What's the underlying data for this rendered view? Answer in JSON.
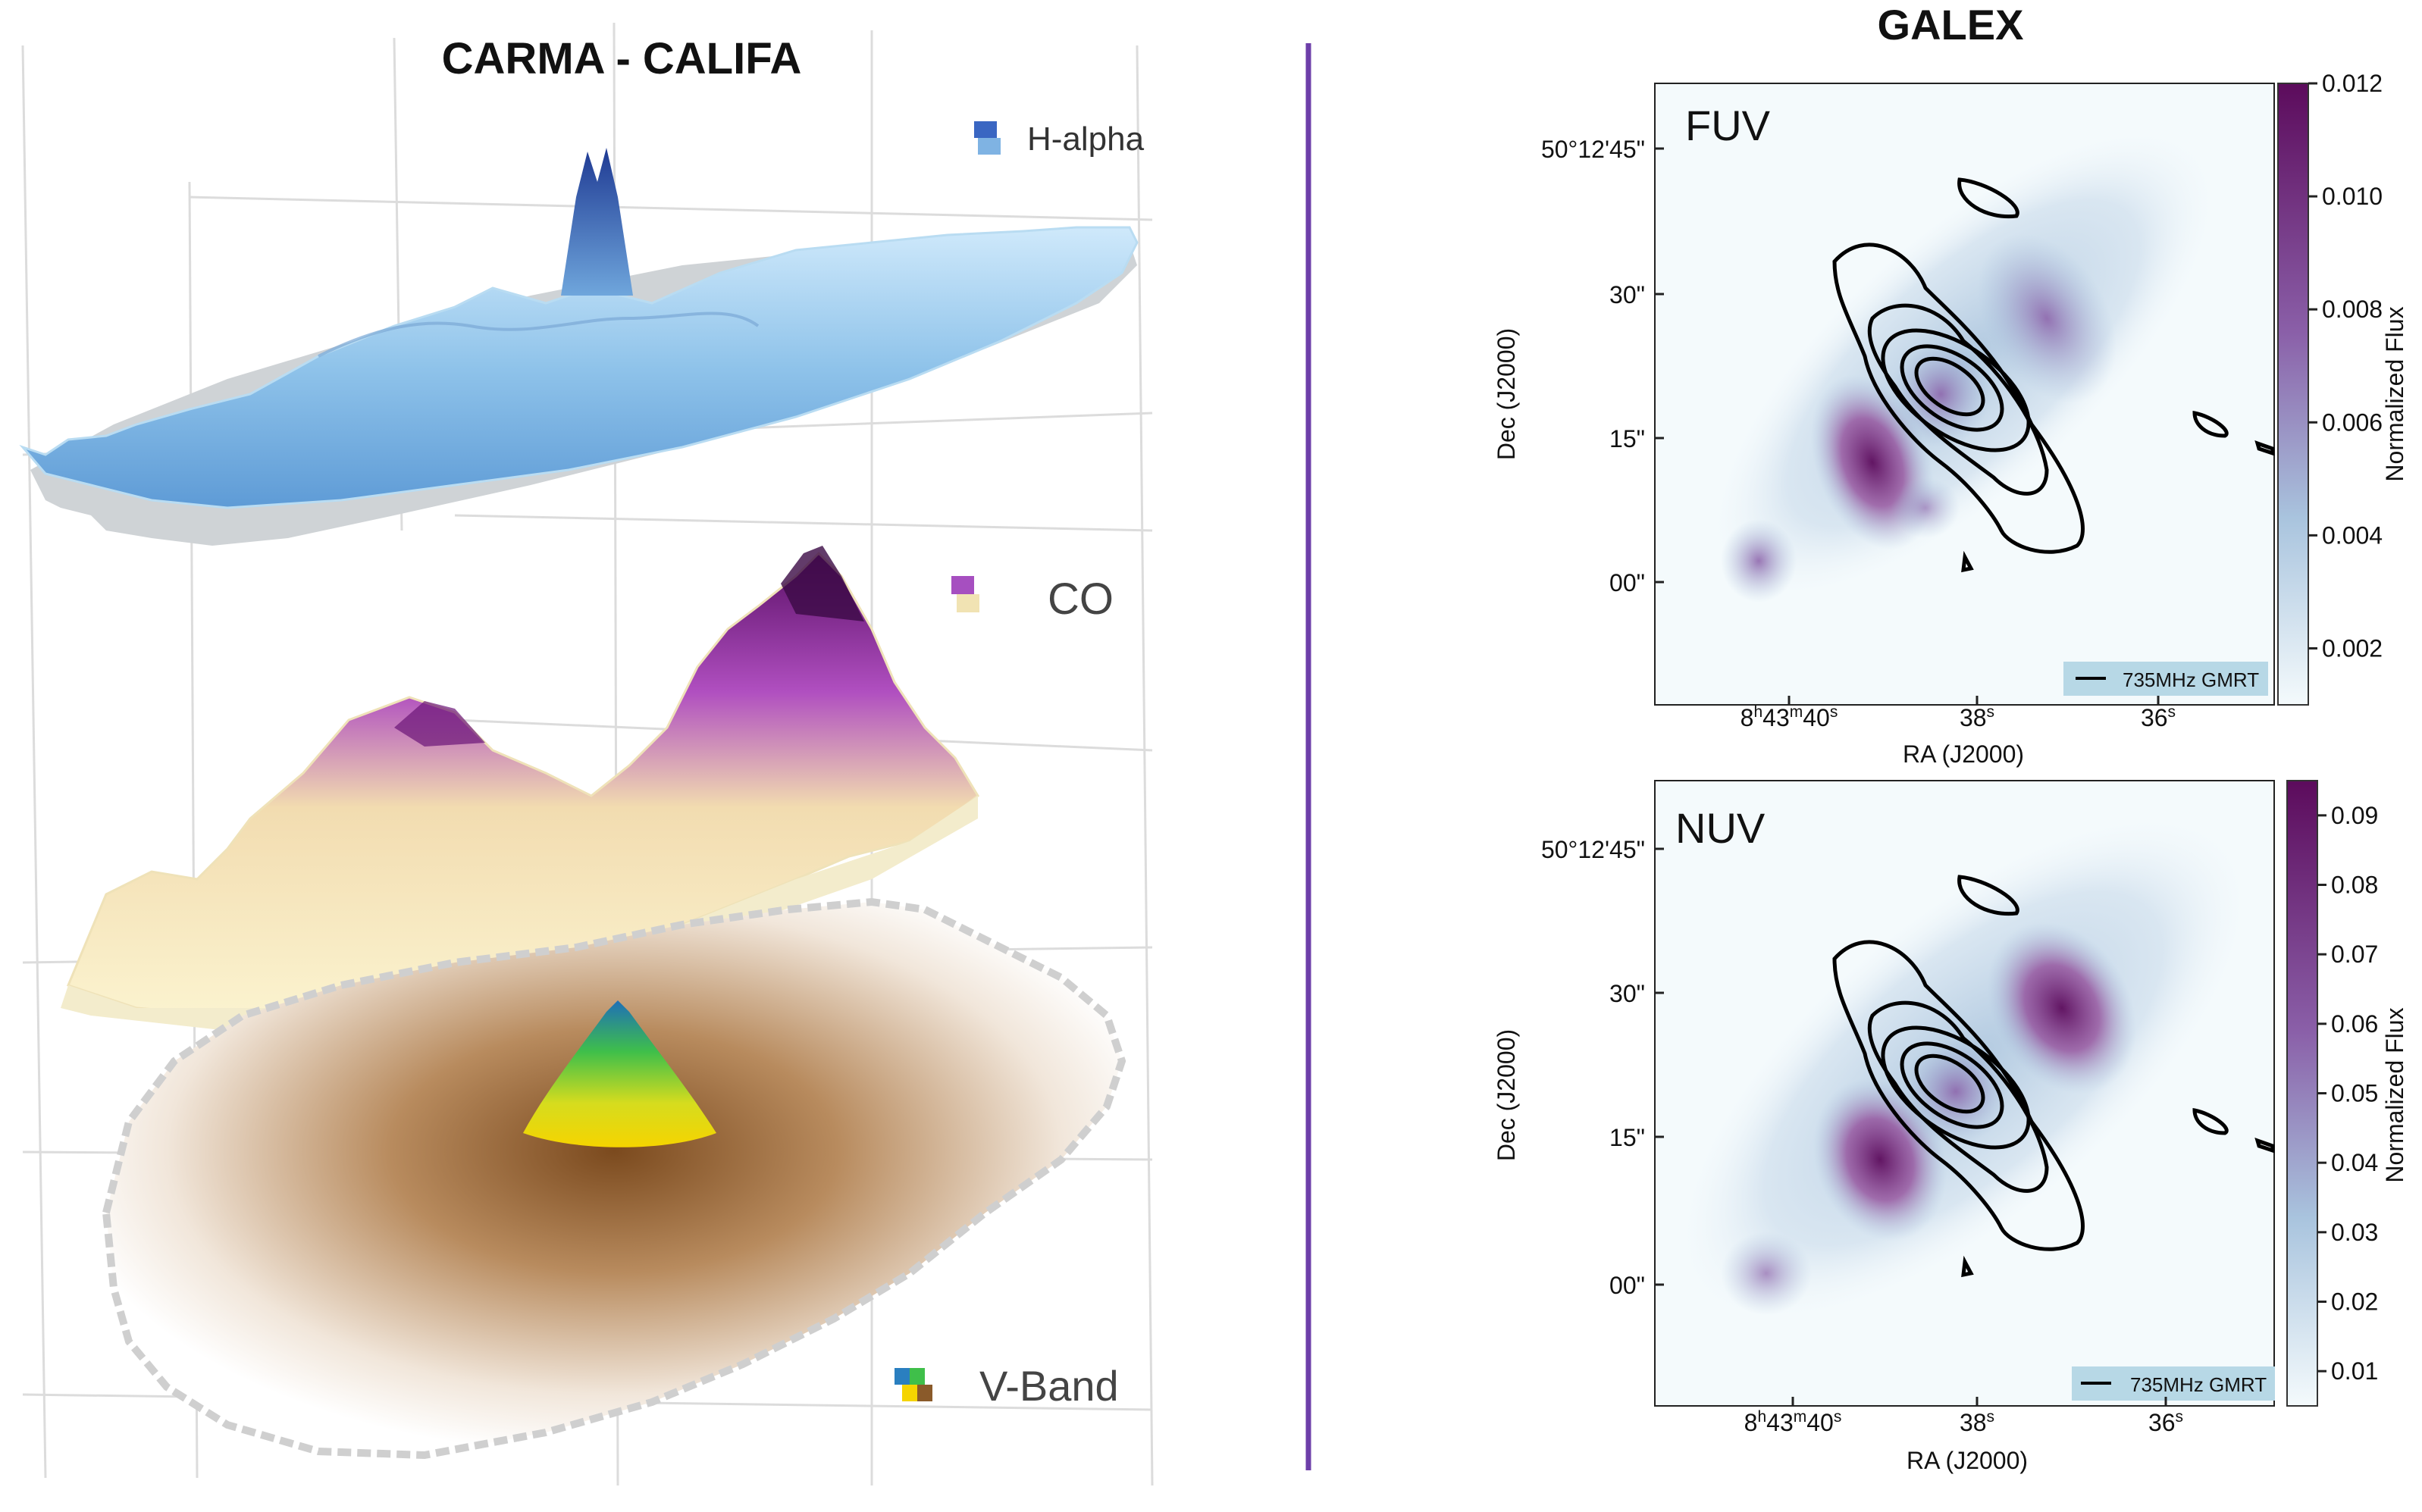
{
  "left_panel": {
    "title": "CARMA - CALIFA",
    "layers": [
      {
        "label": "H-alpha",
        "colors": [
          "#1f3a93",
          "#5e9bd6",
          "#cfe9fb"
        ]
      },
      {
        "label": "CO",
        "colors": [
          "#5a0f66",
          "#b04fc0",
          "#f6eab8"
        ]
      },
      {
        "label": "V-Band",
        "colors": [
          "#1e6fb8",
          "#3fbf4a",
          "#f5d400",
          "#7b4a1e"
        ]
      }
    ]
  },
  "divider_color": "#6d3fa9",
  "chart_data": [
    {
      "type": "heatmap",
      "group_title": "GALEX",
      "panel_label": "FUV",
      "xlabel": "RA (J2000)",
      "ylabel": "Dec (J2000)",
      "xticks": [
        {
          "base": "8",
          "h": "h",
          "min": "43",
          "m": "m",
          "sec": "40",
          "s": "s"
        },
        {
          "base": "38",
          "s": "s"
        },
        {
          "base": "36",
          "s": "s"
        }
      ],
      "yticks": [
        "50°12'45\"",
        "30\"",
        "15\"",
        "00\""
      ],
      "colorbar": {
        "label": "Normalized Flux",
        "ticks": [
          "0.012",
          "0.010",
          "0.008",
          "0.006",
          "0.004",
          "0.002"
        ],
        "range": [
          0.001,
          0.012
        ],
        "colors": [
          "#f4fafc",
          "#9fbcd9",
          "#8a5fa8",
          "#5c0b5c"
        ]
      },
      "legend": {
        "label": "735MHz GMRT",
        "position": "bottom-right"
      },
      "contour_series": "735MHz GMRT"
    },
    {
      "type": "heatmap",
      "panel_label": "NUV",
      "xlabel": "RA (J2000)",
      "ylabel": "Dec (J2000)",
      "xticks": [
        {
          "base": "8",
          "h": "h",
          "min": "43",
          "m": "m",
          "sec": "40",
          "s": "s"
        },
        {
          "base": "38",
          "s": "s"
        },
        {
          "base": "36",
          "s": "s"
        }
      ],
      "yticks": [
        "50°12'45\"",
        "30\"",
        "15\"",
        "00\""
      ],
      "colorbar": {
        "label": "Normalized Flux",
        "ticks": [
          "0.09",
          "0.08",
          "0.07",
          "0.06",
          "0.05",
          "0.04",
          "0.03",
          "0.02",
          "0.01"
        ],
        "range": [
          0.005,
          0.095
        ],
        "colors": [
          "#f4fafc",
          "#9fbcd9",
          "#8a5fa8",
          "#5c0b5c"
        ]
      },
      "legend": {
        "label": "735MHz GMRT",
        "position": "bottom-right"
      },
      "contour_series": "735MHz GMRT"
    }
  ]
}
